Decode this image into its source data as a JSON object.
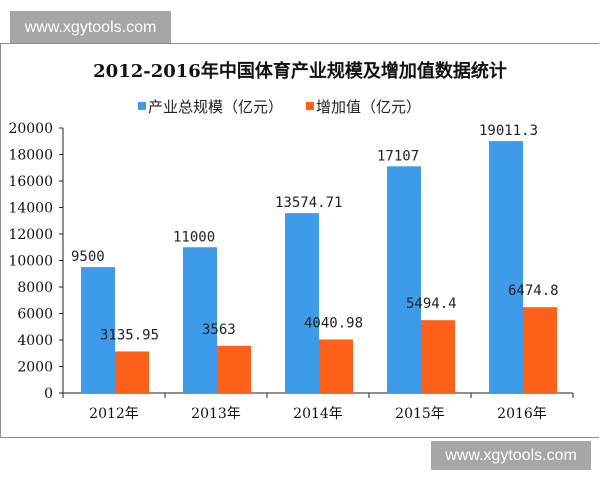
{
  "watermark": {
    "top": "www.xgytools.com",
    "bottom": "www.xgytools.com"
  },
  "chart_data": {
    "type": "bar",
    "title": "2012-2016年中国体育产业规模及增加值数据统计",
    "categories": [
      "2012年",
      "2013年",
      "2014年",
      "2015年",
      "2016年"
    ],
    "series": [
      {
        "name": "产业总规模（亿元）",
        "color": "#3d9be9",
        "values": [
          9500,
          11000,
          13574.71,
          17107,
          19011.3
        ],
        "labels": [
          "9500",
          "11000",
          "13574.71",
          "17107",
          "19011.3"
        ]
      },
      {
        "name": "增加值（亿元）",
        "color": "#fd6119",
        "values": [
          3135.95,
          3563,
          4040.98,
          5494.4,
          6474.8
        ],
        "labels": [
          "3135.95",
          "3563",
          "4040.98",
          "5494.4",
          "6474.8"
        ]
      }
    ],
    "ylim": [
      0,
      20000
    ],
    "yticks": [
      0,
      2000,
      4000,
      6000,
      8000,
      10000,
      12000,
      14000,
      16000,
      18000,
      20000
    ],
    "xlabel": "",
    "ylabel": "",
    "legend": "top-center",
    "grid": false
  }
}
